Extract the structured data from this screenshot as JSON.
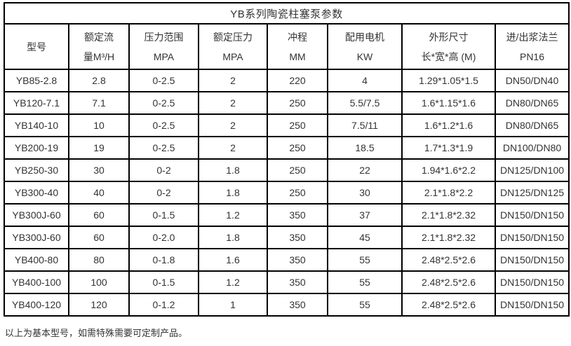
{
  "table": {
    "title": "YB系列陶瓷柱塞泵参数",
    "columns": [
      {
        "line1": "型号",
        "line2": ""
      },
      {
        "line1": "额定流",
        "line2": "量M³/H"
      },
      {
        "line1": "压力范围",
        "line2": "MPA"
      },
      {
        "line1": "额定压力",
        "line2": "MPA"
      },
      {
        "line1": "冲程",
        "line2": "MM"
      },
      {
        "line1": "配用电机",
        "line2": "KW"
      },
      {
        "line1": "外形尺寸",
        "line2": "长*宽*高 (M)"
      },
      {
        "line1": "进/出浆法兰",
        "line2": "PN16"
      }
    ],
    "rows": [
      [
        "YB85-2.8",
        "2.8",
        "0-2.5",
        "2",
        "220",
        "4",
        "1.29*1.05*1.5",
        "DN50/DN40"
      ],
      [
        "YB120-7.1",
        "7.1",
        "0-2.5",
        "2",
        "250",
        "5.5/7.5",
        "1.6*1.15*1.6",
        "DN80/DN65"
      ],
      [
        "YB140-10",
        "10",
        "0-2.5",
        "2",
        "250",
        "7.5/11",
        "1.6*1.2*1.6",
        "DN80/DN65"
      ],
      [
        "YB200-19",
        "19",
        "0-2.5",
        "2",
        "250",
        "18.5",
        "1.7*1.3*1.9",
        "DN100/DN80"
      ],
      [
        "YB250-30",
        "30",
        "0-2",
        "1.8",
        "250",
        "22",
        "1.94*1.6*2.2",
        "DN125/DN100"
      ],
      [
        "YB300-40",
        "40",
        "0-2",
        "1.8",
        "250",
        "30",
        "2.1*1.8*2.2",
        "DN125/DN125"
      ],
      [
        "YB300J-60",
        "60",
        "0-1.5",
        "1.2",
        "350",
        "37",
        "2.1*1.8*2.32",
        "DN150/DN150"
      ],
      [
        "YB300J-60",
        "60",
        "0-2.0",
        "1.8",
        "350",
        "45",
        "2.1*1.8*2.32",
        "DN150/DN150"
      ],
      [
        "YB400-80",
        "80",
        "0-1.8",
        "1.6",
        "350",
        "55",
        "2.48*2.5*2.6",
        "DN150/DN150"
      ],
      [
        "YB400-100",
        "100",
        "0-1.5",
        "1.2",
        "350",
        "55",
        "2.48*2.5*2.6",
        "DN150/DN150"
      ],
      [
        "YB400-120",
        "120",
        "0-1.2",
        "1",
        "350",
        "55",
        "2.48*2.5*2.6",
        "DN150/DN150"
      ]
    ]
  },
  "footer": {
    "note": "以上为基本型号，如需特殊需要可定制产品。"
  },
  "colors": {
    "border": "#000000",
    "text": "#333333",
    "background": "#ffffff"
  }
}
